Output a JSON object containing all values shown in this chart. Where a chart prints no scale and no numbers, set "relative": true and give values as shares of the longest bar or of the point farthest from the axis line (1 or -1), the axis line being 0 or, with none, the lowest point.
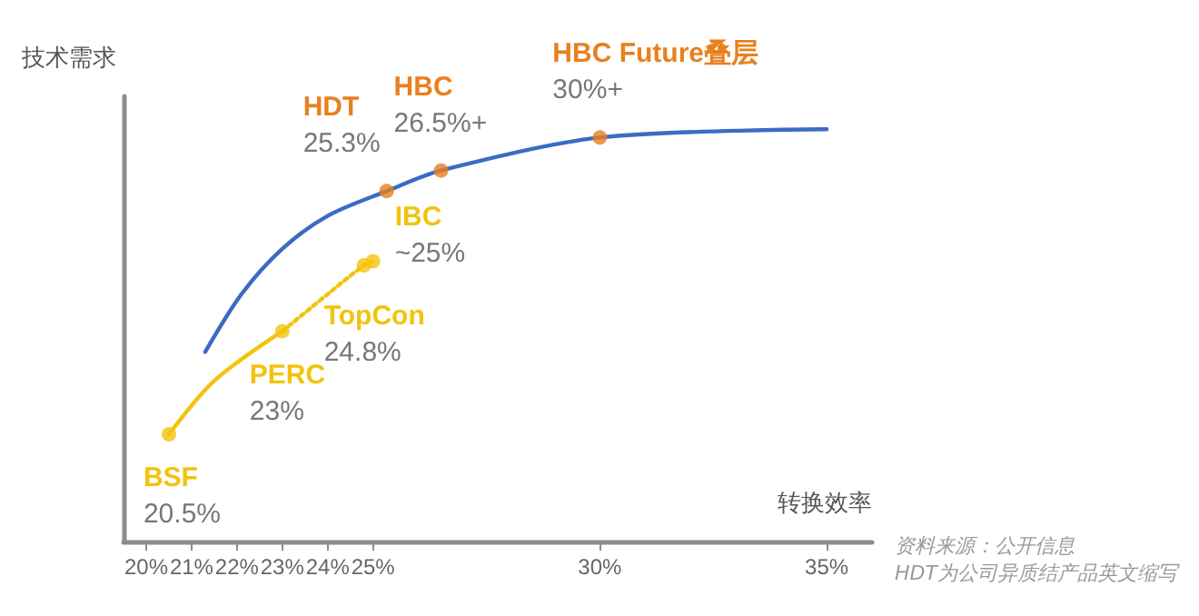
{
  "chart_data": {
    "type": "line",
    "relative": true,
    "xlabel": "转换效率",
    "ylabel": "技术需求",
    "xlim": [
      19.5,
      36
    ],
    "xticks": [
      {
        "value": 20,
        "label": "20%"
      },
      {
        "value": 21,
        "label": "21%"
      },
      {
        "value": 22,
        "label": "22%"
      },
      {
        "value": 23,
        "label": "23%"
      },
      {
        "value": 24,
        "label": "24%"
      },
      {
        "value": 25,
        "label": "25%"
      },
      {
        "value": 30,
        "label": "30%"
      },
      {
        "value": 35,
        "label": "35%"
      }
    ],
    "grid": false,
    "marker": "none",
    "series": [
      {
        "color": "#3b6cc2",
        "x": [
          21.3,
          22.1,
          23,
          24,
          25.3,
          26.5,
          30,
          35
        ],
        "values": [
          0.46,
          0.6,
          0.71,
          0.79,
          0.85,
          0.9,
          0.98,
          1
        ]
      },
      {
        "color": "#f2c30f",
        "x": [
          20.5,
          21.5,
          23
        ],
        "values": [
          0.26,
          0.39,
          0.51
        ]
      },
      {
        "color": "#f2c30f",
        "line_style": "dotted",
        "x": [
          23,
          24,
          24.8,
          25
        ],
        "values": [
          0.51,
          0.6,
          0.67,
          0.68
        ]
      },
      {
        "type": "scatter",
        "marker": "circle",
        "color": "#f2c30f",
        "x": [
          20.5,
          23,
          24.8,
          25
        ],
        "values": [
          0.26,
          0.51,
          0.67,
          0.68
        ]
      },
      {
        "type": "scatter",
        "marker": "circle",
        "color": "#e8801e",
        "x": [
          25.3,
          26.5,
          30
        ],
        "values": [
          0.85,
          0.9,
          0.98
        ]
      }
    ],
    "annotations": [
      {
        "text": "BSF\n20.5%",
        "x": 20.5,
        "y": 0.26
      },
      {
        "text": "PERC\n23%",
        "x": 23,
        "y": 0.51
      },
      {
        "text": "TopCon\n24.8%",
        "x": 24.8,
        "y": 0.67
      },
      {
        "text": "IBC\n~25%",
        "x": 25,
        "y": 0.68
      },
      {
        "text": "HDT\n25.3%",
        "x": 25.3,
        "y": 0.85
      },
      {
        "text": "HBC\n26.5%+",
        "x": 26.5,
        "y": 0.9
      },
      {
        "text": "HBC Future叠层\n30%+",
        "x": 30,
        "y": 0.98
      },
      "资料来源：公开信息\nHDT为公司异质结产品英文缩写"
    ]
  }
}
